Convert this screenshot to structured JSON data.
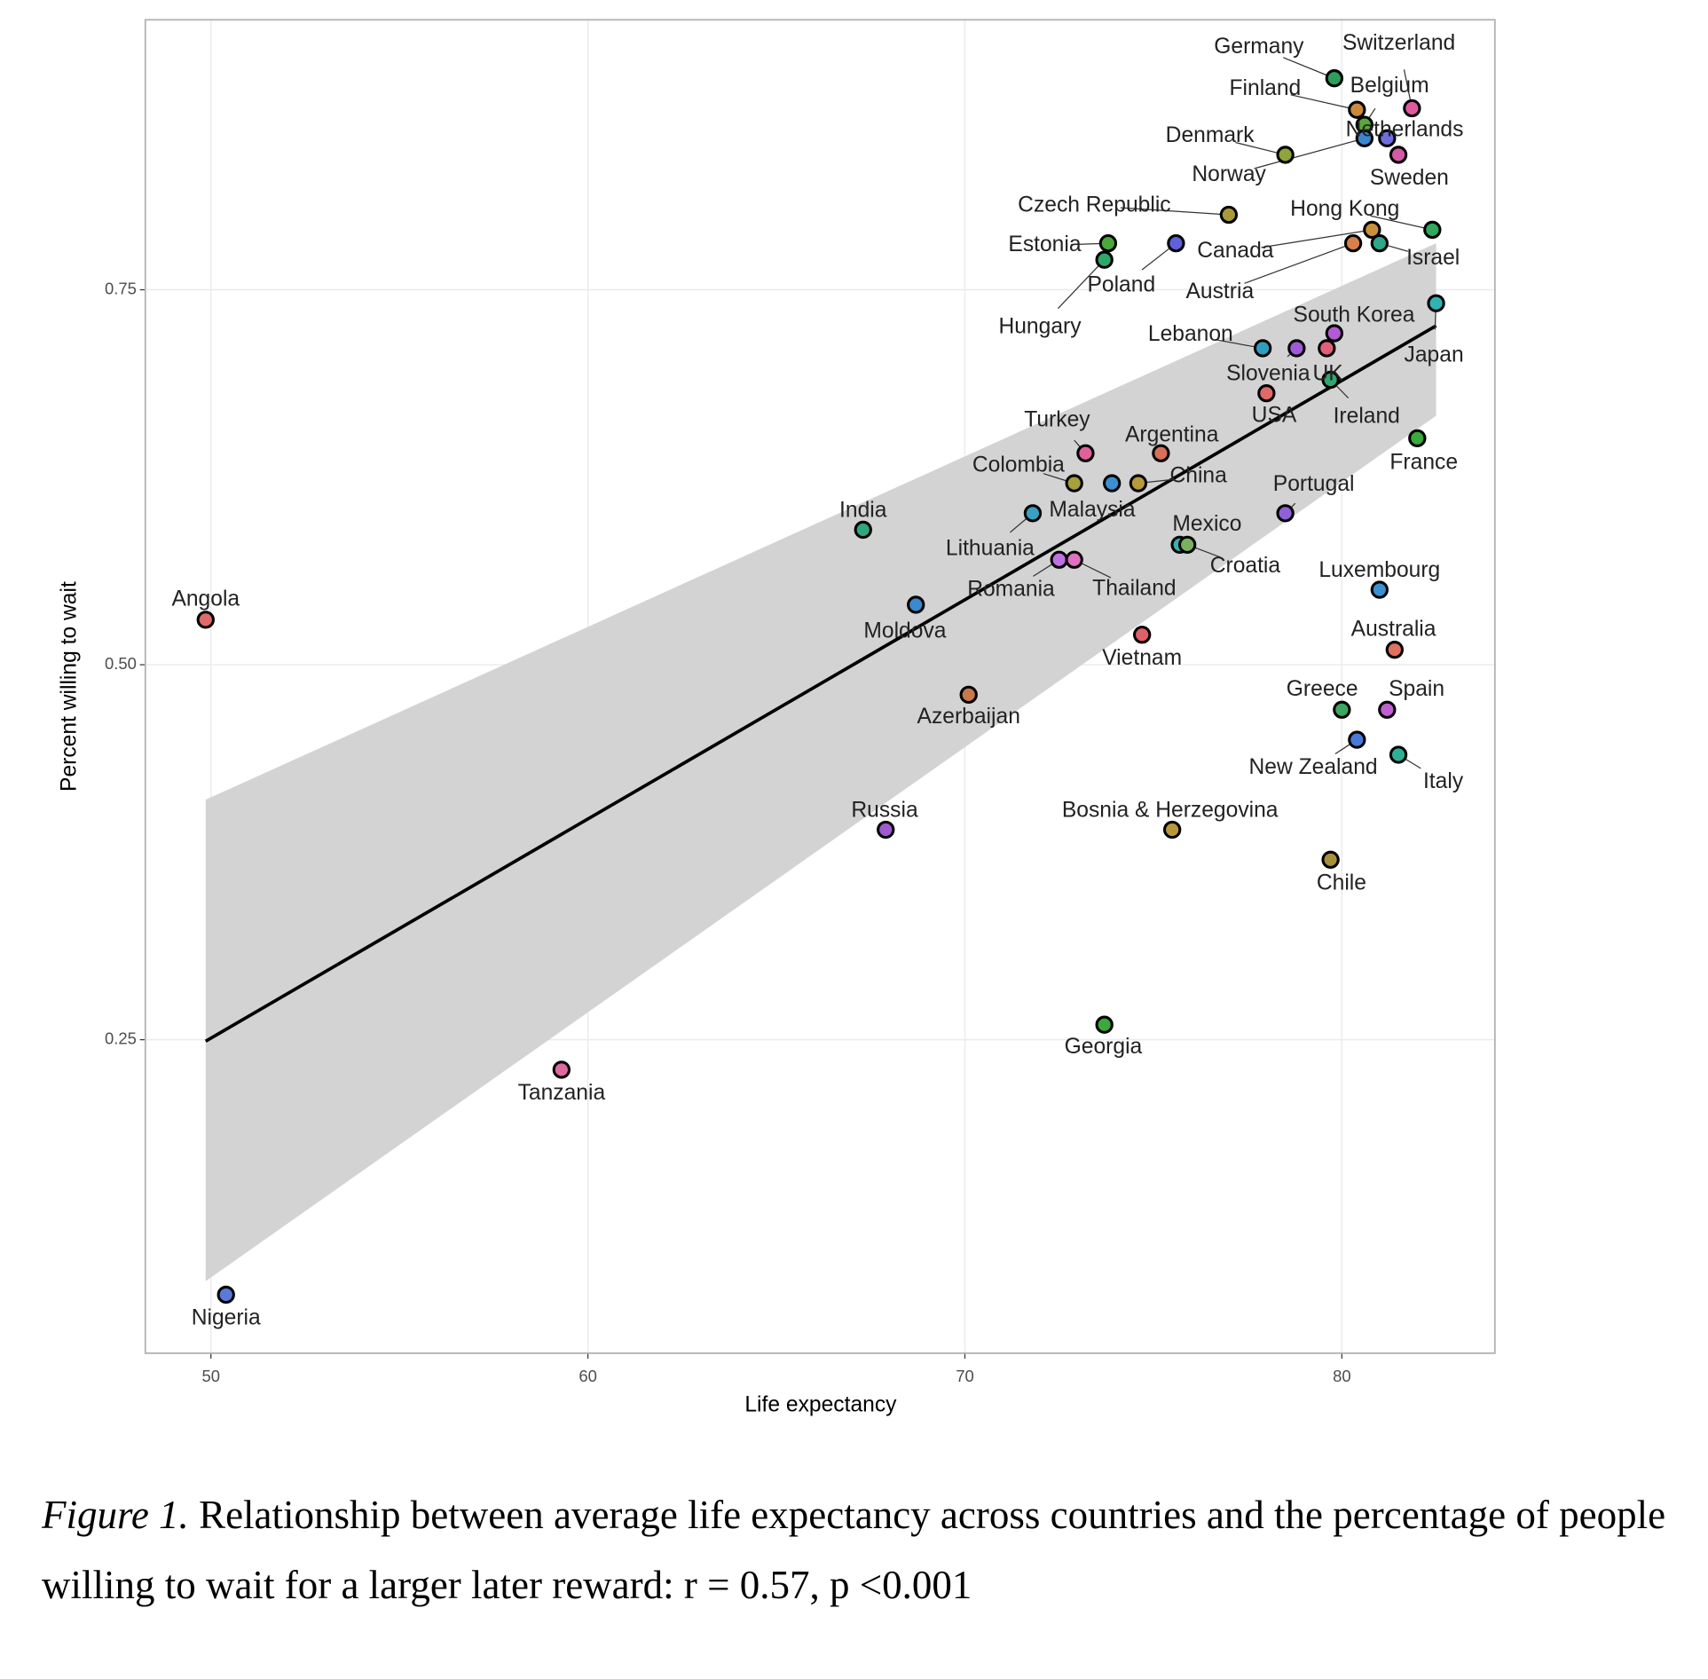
{
  "chart_data": {
    "type": "scatter",
    "xlabel": "Life expectancy",
    "ylabel": "Percent willing to wait",
    "xlim": [
      48.26,
      84.06
    ],
    "ylim": [
      0.041,
      0.93
    ],
    "xticks": [
      50,
      60,
      70,
      80
    ],
    "yticks": [
      0.25,
      {
        "value": 0.5,
        "label": "0.50"
      },
      0.75
    ],
    "grid": true,
    "labels": [
      "Germany",
      "Switzerland",
      "Finland",
      "Belgium",
      "Netherlands",
      "Sweden",
      "Denmark",
      "Norway",
      "Czech Republic",
      "Hong Kong",
      "Israel",
      "Canada",
      "Austria",
      "Poland",
      "Estonia",
      "Hungary",
      "South Korea",
      "Japan",
      "Lebanon",
      "Slovenia",
      "UK",
      "Ireland",
      "USA",
      "France",
      "Turkey",
      "Argentina",
      "Colombia",
      "Malaysia",
      "China",
      "Lithuania",
      "Portugal",
      "India",
      "Mexico",
      "Croatia",
      "Romania",
      "Thailand",
      "Luxembourg",
      "Angola",
      "Moldova",
      "Vietnam",
      "Australia",
      "Azerbaijan",
      "Greece",
      "Spain",
      "New Zealand",
      "Italy",
      "Russia",
      "Bosnia & Herzegovina",
      "Chile",
      "Georgia",
      "Tanzania",
      "Nigeria"
    ],
    "x": [
      79.8,
      81.86,
      80.4,
      80.6,
      81.2,
      81.5,
      78.5,
      80.6,
      77.0,
      82.4,
      81.0,
      80.8,
      80.3,
      75.6,
      73.8,
      73.7,
      79.8,
      82.5,
      77.9,
      78.8,
      79.6,
      79.7,
      78.0,
      82.0,
      73.2,
      75.2,
      72.9,
      73.9,
      74.6,
      71.8,
      78.5,
      67.3,
      75.7,
      75.9,
      72.5,
      72.9,
      81.0,
      49.86,
      68.7,
      74.7,
      81.4,
      70.1,
      80.0,
      81.2,
      80.4,
      81.5,
      67.9,
      75.5,
      79.7,
      73.7,
      59.3,
      50.4
    ],
    "values": [
      0.891,
      0.871,
      0.87,
      0.86,
      0.851,
      0.84,
      0.84,
      0.851,
      0.8,
      0.79,
      0.781,
      0.79,
      0.781,
      0.781,
      0.781,
      0.77,
      0.721,
      0.741,
      0.711,
      0.711,
      0.711,
      0.69,
      0.681,
      0.651,
      0.641,
      0.641,
      0.621,
      0.621,
      0.621,
      0.601,
      0.601,
      0.59,
      0.58,
      0.58,
      0.57,
      0.57,
      0.55,
      0.53,
      0.54,
      0.52,
      0.51,
      0.48,
      0.47,
      0.47,
      0.45,
      0.44,
      0.39,
      0.39,
      0.37,
      0.26,
      0.23,
      0.08
    ],
    "colors": [
      "#2e9e5b",
      "#e05aa0",
      "#c98a3a",
      "#5aa83c",
      "#6e6ee0",
      "#d45aa8",
      "#8fa43a",
      "#3a86d0",
      "#a89a3a",
      "#2eaa5a",
      "#2ea88a",
      "#c9903a",
      "#d8804a",
      "#6060d8",
      "#4aa83a",
      "#2ea86a",
      "#b45ad8",
      "#2eb4b4",
      "#2e9ec0",
      "#a05ad8",
      "#e0607a",
      "#2ea870",
      "#e06a6a",
      "#3aa83a",
      "#e0609a",
      "#d8705a",
      "#a8a03a",
      "#3a90d0",
      "#b89a3a",
      "#3aa0c0",
      "#9060d8",
      "#2ea87a",
      "#3ab0b0",
      "#7ab060",
      "#c070e0",
      "#e070c0",
      "#3a90d0",
      "#e06a6a",
      "#3a8ad0",
      "#e0606a",
      "#e07060",
      "#c8784a",
      "#3aa860",
      "#c060d0",
      "#4a7ad8",
      "#2eb096",
      "#a05ad0",
      "#b8983a",
      "#a8903a",
      "#3aa83a",
      "#e06aa0",
      "#5a7ad8"
    ],
    "fit": {
      "x": [
        49.86,
        82.5
      ],
      "y": [
        0.249,
        0.726
      ],
      "lower": [
        0.089,
        0.666
      ],
      "upper": [
        0.41,
        0.781
      ],
      "color": "#000000",
      "band_color": "#d3d3d3"
    }
  },
  "caption": {
    "label": "Figure 1.",
    "text": " Relationship between average life expectancy across countries and the percentage of people willing to wait for a larger later reward: r = 0.57, p <0.001"
  }
}
